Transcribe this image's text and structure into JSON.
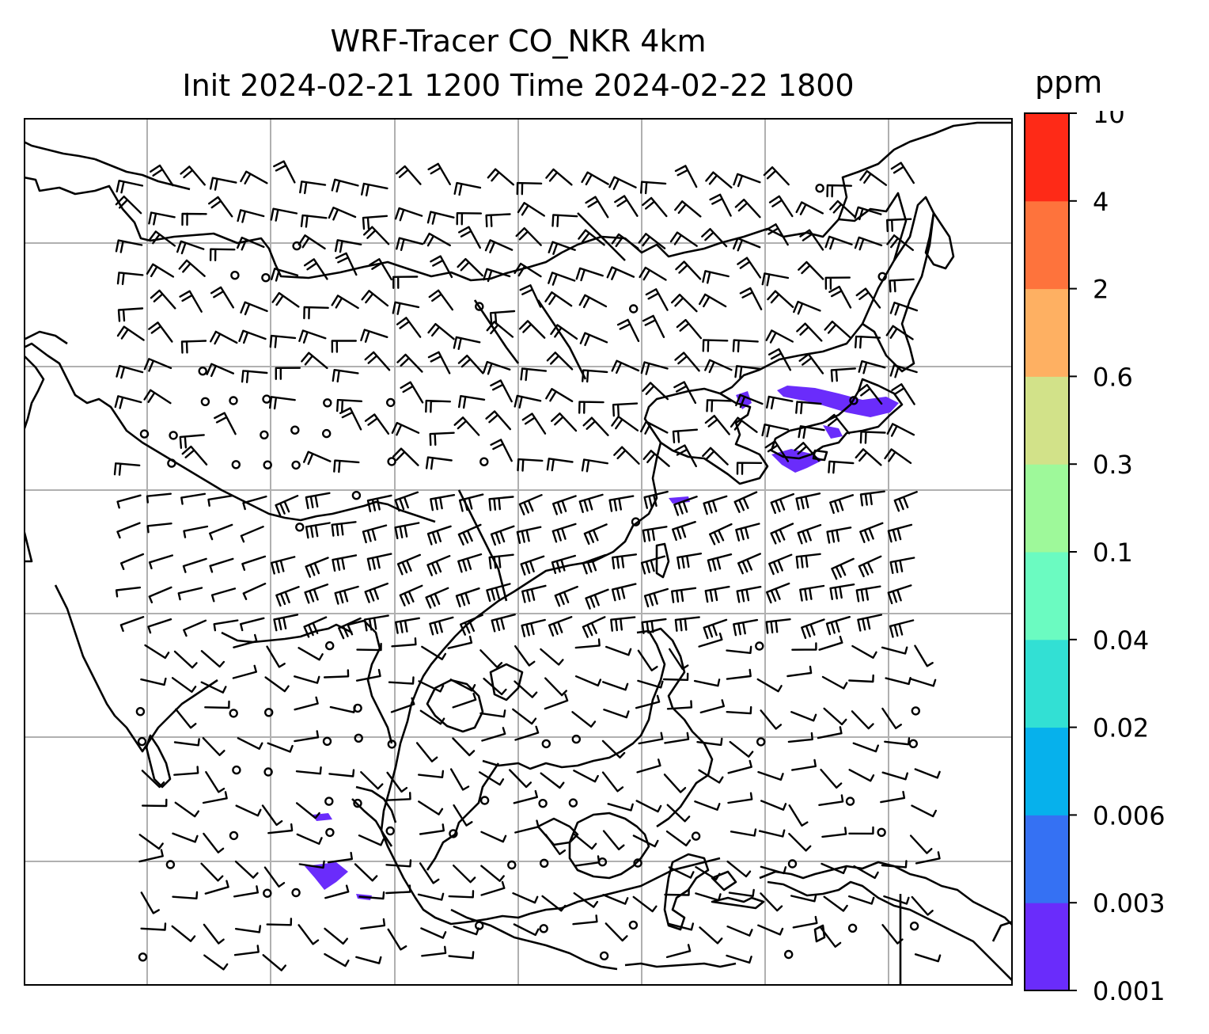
{
  "title": {
    "line1": "WRF-Tracer CO_NKR 4km",
    "line2": "Init 2024-02-21 1200 Time 2024-02-22 1800"
  },
  "colorbar": {
    "unit": "ppm",
    "levels": [
      "0.001",
      "0.003",
      "0.006",
      "0.02",
      "0.04",
      "0.1",
      "0.3",
      "0.6",
      "2",
      "4",
      "10"
    ],
    "colors": [
      "#6a2cfb",
      "#3571f3",
      "#06b1ec",
      "#32e0d4",
      "#6bfbc1",
      "#9ef99a",
      "#d2e289",
      "#feb062",
      "#fe733c",
      "#fe2a17"
    ]
  },
  "map": {
    "gridlines": true,
    "wind_barbs": true,
    "tracer_color": "#6a2cfb"
  }
}
